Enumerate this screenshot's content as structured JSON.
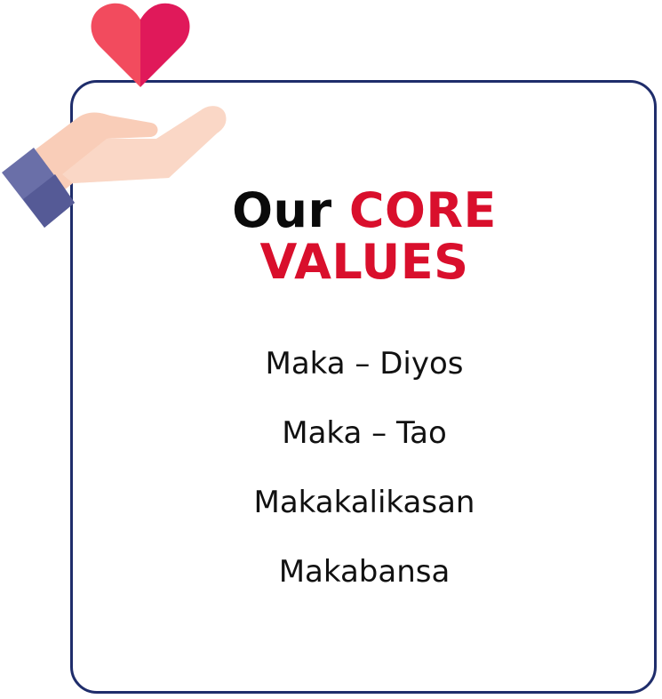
{
  "heading": {
    "word_our": "Our",
    "word_core": "CORE",
    "word_values": "VALUES"
  },
  "values": [
    "Maka – Diyos",
    "Maka – Tao",
    "Makakalikasan",
    "Makabansa"
  ],
  "colors": {
    "border": "#1f2d6b",
    "accent": "#d90f2c",
    "heart_left": "#f24b5e",
    "heart_right": "#e0195a",
    "hand": "#f9cdb8",
    "cuff": "#6a6fa8",
    "cuff_dark": "#555a96"
  },
  "icons": {
    "illustration": "hand-holding-heart-icon"
  }
}
